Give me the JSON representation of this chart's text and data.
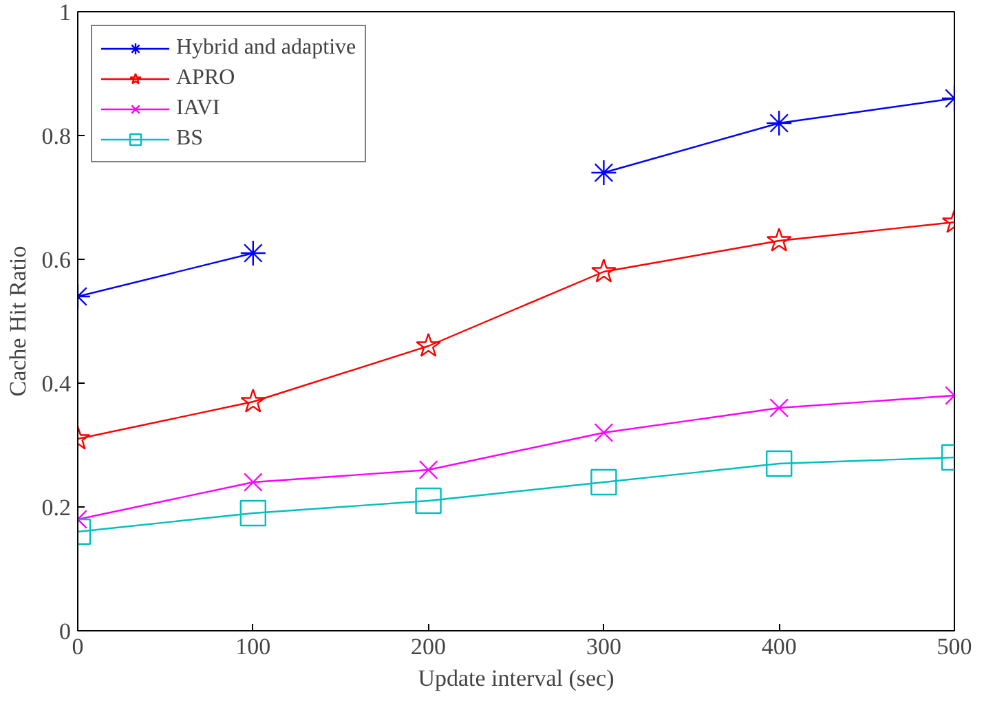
{
  "chart_data": {
    "type": "line",
    "xlabel": "Update interval (sec)",
    "ylabel": "Cache Hit Ratio",
    "x": [
      0,
      100,
      200,
      300,
      400,
      500
    ],
    "series": [
      {
        "name": "Hybrid and adaptive",
        "color": "#0000ff",
        "marker": "cross",
        "values": [
          0.54,
          0.61,
          null,
          0.74,
          0.82,
          0.86
        ]
      },
      {
        "name": "APRO",
        "color": "#ff0000",
        "marker": "star",
        "values": [
          0.31,
          0.37,
          0.46,
          0.58,
          0.63,
          0.66
        ]
      },
      {
        "name": "IAVI",
        "color": "#ff00ff",
        "marker": "x",
        "values": [
          0.18,
          0.24,
          0.26,
          0.32,
          0.36,
          0.38
        ]
      },
      {
        "name": "BS",
        "color": "#00bfbf",
        "marker": "square",
        "values": [
          0.16,
          0.19,
          0.21,
          0.24,
          0.27,
          0.28
        ]
      }
    ],
    "xlim": [
      0,
      500
    ],
    "ylim": [
      0,
      1
    ],
    "xticks": [
      0,
      100,
      200,
      300,
      400,
      500
    ],
    "yticks": [
      {
        "value": 0,
        "label": "0"
      },
      {
        "value": 0.2,
        "label": "0.2"
      },
      {
        "value": 0.4,
        "label": "0.4"
      },
      {
        "value": 0.6,
        "label": "0.6"
      },
      {
        "value": 0.8,
        "label": "0.8"
      },
      {
        "value": 1,
        "label": "1"
      }
    ],
    "grid": false,
    "legend": "top left",
    "line_style": "solid"
  }
}
